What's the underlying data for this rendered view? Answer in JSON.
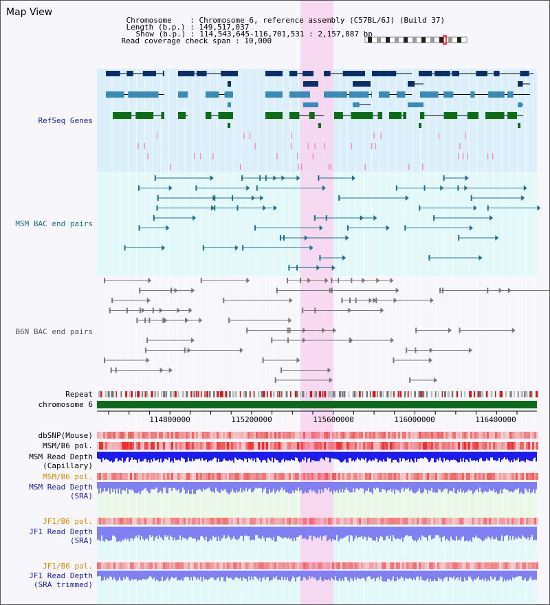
{
  "page": {
    "title": "Map View"
  },
  "header": {
    "chromosome_key": "Chromosome",
    "chromosome_value": "Chromosome 6, reference assembly (C57BL/6J) (Build 37)",
    "length_key": "Length (b.p.)",
    "length_value": "149,517,037",
    "show_key": "Show (b.p.)",
    "show_value": "114,543,645-116,701,531 : 2,157,887 bp",
    "coverage_key": "Read coverage check span",
    "coverage_value": "10,000"
  },
  "tracks": {
    "refseq": "RefSeq Genes",
    "msm_bac": "MSM BAC end pairs",
    "b6n_bac": "B6N BAC end pairs",
    "repeat": "Repeat",
    "chromosome": "chromosome 6",
    "dbsnp": "dbSNP(Mouse)",
    "msm_b6_pol_1": "MSM/B6 pol.",
    "msm_depth_cap_1": "MSM Read Depth",
    "msm_depth_cap_2": "(Capillary)",
    "msm_b6_pol_2": "MSM/B6 pol.",
    "msm_depth_sra_1": "MSM Read Depth",
    "msm_depth_sra_2": "(SRA)",
    "jf1_b6_pol_1": "JF1/B6 pol.",
    "jf1_depth_sra_1": "JF1 Read Depth",
    "jf1_depth_sra_2": "(SRA)",
    "jf1_b6_pol_2": "JF1/B6 pol.",
    "jf1_depth_trim_1": "JF1 Read Depth",
    "jf1_depth_trim_2": "(SRA trimmed)"
  },
  "axis": {
    "ticks": [
      "114800000",
      "115200000",
      "115600000",
      "116000000",
      "116400000"
    ]
  },
  "colors": {
    "highlight": "#f8d4f0",
    "refseq_bg": "#dbeffa",
    "msm_bg": "#e3f8f8",
    "gene_dark": "#0a2f68",
    "gene_mid": "#3a8ab8",
    "gene_green": "#0a6e14",
    "msm_line": "#1f6e8e",
    "b6n_line": "#777777",
    "chromosome": "#0b6a1c",
    "snp_red": "#ee3030",
    "depth_blue": "#1c1cf0",
    "depth_light": "#8080f4"
  }
}
